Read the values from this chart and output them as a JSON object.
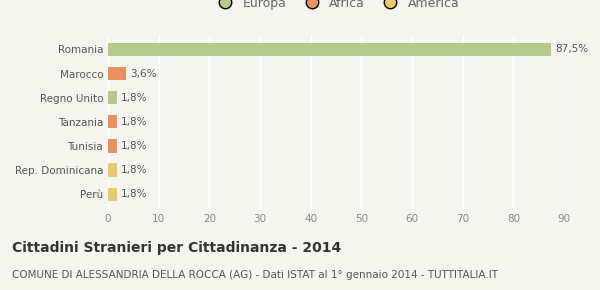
{
  "categories": [
    "Perù",
    "Rep. Dominicana",
    "Tunisia",
    "Tanzania",
    "Regno Unito",
    "Marocco",
    "Romania"
  ],
  "values": [
    1.8,
    1.8,
    1.8,
    1.8,
    1.8,
    3.6,
    87.5
  ],
  "colors": [
    "#e8c870",
    "#e8c870",
    "#e89060",
    "#e89060",
    "#b5c98e",
    "#e89060",
    "#b5c98e"
  ],
  "labels": [
    "1,8%",
    "1,8%",
    "1,8%",
    "1,8%",
    "1,8%",
    "3,6%",
    "87,5%"
  ],
  "legend": [
    {
      "label": "Europa",
      "color": "#b5c98e"
    },
    {
      "label": "Africa",
      "color": "#e89060"
    },
    {
      "label": "America",
      "color": "#e8c870"
    }
  ],
  "xlim": [
    0,
    90
  ],
  "xticks": [
    0,
    10,
    20,
    30,
    40,
    50,
    60,
    70,
    80,
    90
  ],
  "title": "Cittadini Stranieri per Cittadinanza - 2014",
  "subtitle": "COMUNE DI ALESSANDRIA DELLA ROCCA (AG) - Dati ISTAT al 1° gennaio 2014 - TUTTITALIA.IT",
  "background_color": "#f5f5f0",
  "grid_color": "#ffffff",
  "label_fontsize": 7.5,
  "ytick_fontsize": 7.5,
  "xtick_fontsize": 7.5,
  "title_fontsize": 10,
  "subtitle_fontsize": 7.5,
  "bar_height": 0.55
}
